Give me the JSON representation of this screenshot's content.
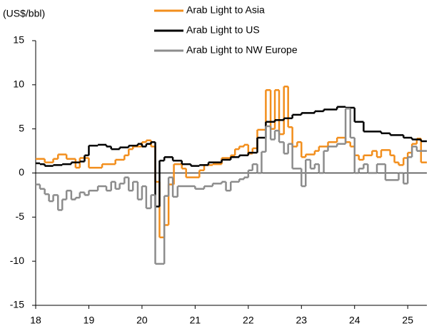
{
  "chart_data": {
    "type": "step",
    "ylabel": "(US$/bbl)",
    "xlim": [
      18,
      25.36
    ],
    "xticks": [
      18,
      19,
      20,
      21,
      22,
      23,
      24,
      25
    ],
    "ylim": [
      -15,
      15
    ],
    "yticks": [
      -15,
      -10,
      -5,
      0,
      5,
      10,
      15
    ],
    "legend": "top",
    "series": [
      {
        "name": "Arab Light to Asia",
        "color": "#f28e1c",
        "x": [
          18.0,
          18.17,
          18.33,
          18.42,
          18.58,
          18.75,
          18.83,
          19.0,
          19.25,
          19.5,
          19.67,
          19.75,
          19.83,
          20.0,
          20.08,
          20.17,
          20.25,
          20.33,
          20.42,
          20.5,
          20.6,
          20.75,
          20.83,
          21.08,
          21.17,
          21.33,
          21.5,
          21.67,
          21.75,
          21.83,
          21.92,
          22.0,
          22.08,
          22.17,
          22.33,
          22.42,
          22.5,
          22.58,
          22.67,
          22.75,
          22.83,
          22.92,
          23.0,
          23.08,
          23.25,
          23.33,
          23.5,
          23.67,
          23.83,
          23.92,
          24.0,
          24.08,
          24.17,
          24.33,
          24.42,
          24.5,
          24.67,
          24.75,
          24.83,
          24.92,
          25.0,
          25.08,
          25.17,
          25.25
        ],
        "values": [
          1.6,
          1.2,
          1.6,
          2.1,
          1.6,
          0.6,
          1.7,
          0.6,
          1.0,
          1.5,
          2.0,
          2.7,
          3.0,
          3.5,
          3.7,
          3.0,
          -1.0,
          -7.3,
          -5.9,
          -1.3,
          1.0,
          0.5,
          -0.5,
          0.3,
          0.9,
          1.0,
          1.7,
          2.0,
          2.7,
          3.0,
          3.2,
          2.2,
          2.8,
          4.9,
          9.4,
          5.0,
          9.4,
          4.4,
          9.8,
          5.2,
          3.0,
          3.5,
          1.8,
          2.1,
          2.5,
          3.0,
          3.5,
          4.0,
          3.5,
          3.0,
          2.0,
          1.5,
          2.0,
          2.5,
          1.8,
          2.6,
          2.0,
          1.2,
          0.9,
          1.7,
          2.3,
          3.3,
          3.9,
          1.2
        ]
      },
      {
        "name": "Arab Light to US",
        "color": "#000000",
        "x": [
          18.0,
          18.08,
          18.17,
          18.33,
          18.5,
          18.67,
          18.83,
          18.92,
          19.0,
          19.17,
          19.33,
          19.42,
          19.58,
          19.75,
          19.92,
          20.0,
          20.08,
          20.17,
          20.25,
          20.33,
          20.42,
          20.58,
          20.75,
          20.92,
          21.08,
          21.25,
          21.5,
          21.67,
          21.83,
          22.0,
          22.17,
          22.33,
          22.5,
          22.67,
          22.83,
          23.0,
          23.25,
          23.42,
          23.67,
          23.83,
          24.0,
          24.17,
          24.5,
          24.67,
          24.92,
          25.08,
          25.25
        ],
        "values": [
          1.1,
          1.0,
          0.8,
          0.9,
          1.0,
          1.2,
          1.3,
          2.0,
          3.1,
          3.2,
          3.0,
          2.7,
          2.9,
          3.1,
          3.3,
          3.0,
          3.3,
          3.5,
          -3.8,
          1.4,
          1.8,
          1.4,
          1.0,
          0.8,
          0.9,
          1.2,
          1.5,
          1.8,
          2.0,
          2.3,
          4.0,
          5.8,
          6.0,
          6.2,
          6.6,
          6.8,
          7.0,
          7.2,
          7.5,
          7.4,
          5.8,
          4.7,
          4.5,
          4.3,
          4.0,
          3.8,
          3.6
        ]
      },
      {
        "name": "Arab Light to NW Europe",
        "color": "#8c8c8c",
        "x": [
          18.0,
          18.08,
          18.17,
          18.25,
          18.33,
          18.42,
          18.5,
          18.58,
          18.67,
          18.75,
          18.83,
          18.92,
          19.0,
          19.17,
          19.33,
          19.42,
          19.5,
          19.58,
          19.67,
          19.75,
          19.83,
          19.92,
          20.0,
          20.08,
          20.17,
          20.25,
          20.42,
          20.5,
          20.58,
          20.67,
          21.0,
          21.17,
          21.33,
          21.5,
          21.58,
          21.67,
          21.83,
          21.92,
          22.0,
          22.08,
          22.17,
          22.25,
          22.33,
          22.42,
          22.5,
          22.58,
          22.67,
          22.75,
          22.83,
          23.0,
          23.08,
          23.17,
          23.25,
          23.33,
          23.42,
          23.5,
          23.67,
          23.83,
          23.92,
          24.0,
          24.08,
          24.17,
          24.25,
          24.42,
          24.58,
          24.83,
          24.92,
          25.0,
          25.08,
          25.17
        ],
        "values": [
          -1.3,
          -1.8,
          -2.4,
          -3.2,
          -2.5,
          -4.2,
          -3.0,
          -2.0,
          -3.0,
          -2.8,
          -2.2,
          -2.5,
          -2.0,
          -1.5,
          -2.0,
          -1.0,
          -1.8,
          -1.2,
          -0.5,
          -2.0,
          -1.0,
          -3.0,
          -1.5,
          -4.0,
          -2.5,
          -10.3,
          -2.6,
          -0.5,
          -2.7,
          -1.5,
          -1.8,
          -1.5,
          -1.2,
          -1.0,
          -2.0,
          -1.0,
          -0.7,
          -0.5,
          0.3,
          1.0,
          0.0,
          2.4,
          5.3,
          3.8,
          4.8,
          3.5,
          2.2,
          3.3,
          0.5,
          -1.5,
          1.5,
          0.5,
          1.0,
          0.0,
          2.5,
          3.0,
          3.3,
          7.3,
          4.0,
          0.0,
          0.5,
          1.0,
          0.0,
          1.0,
          -0.8,
          0.0,
          -1.2,
          1.8,
          3.0,
          2.5
        ]
      }
    ]
  }
}
